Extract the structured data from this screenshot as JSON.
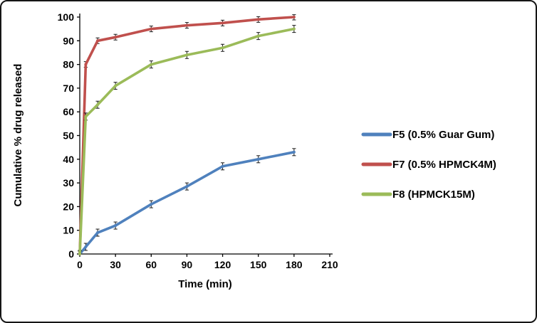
{
  "chart_data": {
    "type": "line",
    "title": "",
    "xlabel": "Time (min)",
    "ylabel": "Cumulative % drug released",
    "xlim": [
      0,
      210
    ],
    "ylim": [
      0,
      100
    ],
    "xticks": [
      0,
      30,
      60,
      90,
      120,
      150,
      180,
      210
    ],
    "yticks": [
      0,
      10,
      20,
      30,
      40,
      50,
      60,
      70,
      80,
      90,
      100
    ],
    "grid": false,
    "legend_position": "right",
    "x": [
      0,
      5,
      15,
      30,
      60,
      90,
      120,
      150,
      180
    ],
    "series": [
      {
        "name": "F5 (0.5% Guar Gum)",
        "color": "#4F81BD",
        "values": [
          0,
          3,
          9,
          12,
          21,
          28.5,
          37,
          40,
          43
        ],
        "error": 1.5
      },
      {
        "name": "F7 (0.5% HPMCK4M)",
        "color": "#C0504D",
        "values": [
          0,
          80,
          90,
          91.5,
          95,
          96.5,
          97.5,
          99,
          100
        ],
        "error": 1.2
      },
      {
        "name": "F8 (HPMCK15M)",
        "color": "#9BBB59",
        "values": [
          0,
          58,
          63,
          71,
          80,
          84,
          87,
          92,
          95
        ],
        "error": 1.5
      }
    ]
  }
}
